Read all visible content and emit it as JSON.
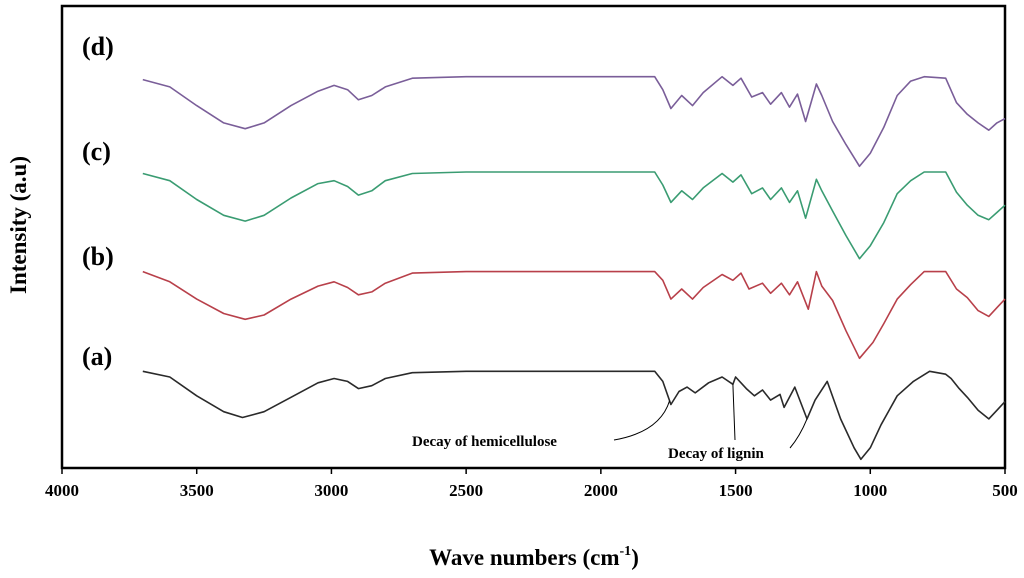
{
  "chart_data": {
    "type": "line",
    "title": "",
    "xlabel": "Wave numbers (cm",
    "xlabel_sup": "-1",
    "xlabel_end": ")",
    "ylabel": "Intensity (a.u)",
    "xlim": [
      4000,
      500
    ],
    "x_reversed": true,
    "x_ticks": [
      4000,
      3500,
      3000,
      2500,
      2000,
      1500,
      1000,
      500
    ],
    "x_tick_labels": [
      "4000",
      "3500",
      "3000",
      "2500",
      "2000",
      "1500",
      "1000",
      "500"
    ],
    "ylim": [
      0,
      11
    ],
    "y_ticks_shown": false,
    "grid": false,
    "legend": "inline labels at left",
    "series": [
      {
        "name": "(a)",
        "color": "#2a2a2a",
        "points": [
          [
            3700,
            3.35
          ],
          [
            3600,
            3.15
          ],
          [
            3500,
            2.5
          ],
          [
            3400,
            1.95
          ],
          [
            3330,
            1.75
          ],
          [
            3250,
            1.95
          ],
          [
            3150,
            2.45
          ],
          [
            3050,
            2.95
          ],
          [
            2990,
            3.1
          ],
          [
            2940,
            3.0
          ],
          [
            2900,
            2.75
          ],
          [
            2850,
            2.85
          ],
          [
            2800,
            3.1
          ],
          [
            2700,
            3.3
          ],
          [
            2500,
            3.35
          ],
          [
            2000,
            3.35
          ],
          [
            1800,
            3.35
          ],
          [
            1770,
            3.0
          ],
          [
            1740,
            2.2
          ],
          [
            1710,
            2.65
          ],
          [
            1680,
            2.8
          ],
          [
            1650,
            2.6
          ],
          [
            1600,
            2.95
          ],
          [
            1550,
            3.15
          ],
          [
            1510,
            2.9
          ],
          [
            1500,
            3.15
          ],
          [
            1460,
            2.75
          ],
          [
            1430,
            2.5
          ],
          [
            1400,
            2.7
          ],
          [
            1370,
            2.35
          ],
          [
            1335,
            2.55
          ],
          [
            1320,
            2.1
          ],
          [
            1280,
            2.8
          ],
          [
            1235,
            1.7
          ],
          [
            1205,
            2.35
          ],
          [
            1160,
            3.0
          ],
          [
            1110,
            1.7
          ],
          [
            1060,
            0.7
          ],
          [
            1035,
            0.3
          ],
          [
            1000,
            0.7
          ],
          [
            960,
            1.5
          ],
          [
            900,
            2.5
          ],
          [
            840,
            3.0
          ],
          [
            780,
            3.35
          ],
          [
            720,
            3.25
          ],
          [
            700,
            3.1
          ],
          [
            670,
            2.75
          ],
          [
            640,
            2.45
          ],
          [
            600,
            2.0
          ],
          [
            560,
            1.7
          ],
          [
            530,
            2.0
          ],
          [
            500,
            2.3
          ]
        ]
      },
      {
        "name": "(b)",
        "color": "#b8404a",
        "points": [
          [
            3700,
            6.8
          ],
          [
            3600,
            6.45
          ],
          [
            3500,
            5.85
          ],
          [
            3400,
            5.35
          ],
          [
            3320,
            5.15
          ],
          [
            3250,
            5.3
          ],
          [
            3150,
            5.85
          ],
          [
            3050,
            6.3
          ],
          [
            2990,
            6.45
          ],
          [
            2940,
            6.25
          ],
          [
            2900,
            6.0
          ],
          [
            2850,
            6.1
          ],
          [
            2800,
            6.4
          ],
          [
            2700,
            6.75
          ],
          [
            2500,
            6.8
          ],
          [
            2000,
            6.8
          ],
          [
            1800,
            6.8
          ],
          [
            1770,
            6.5
          ],
          [
            1740,
            5.85
          ],
          [
            1700,
            6.2
          ],
          [
            1660,
            5.85
          ],
          [
            1620,
            6.25
          ],
          [
            1550,
            6.7
          ],
          [
            1510,
            6.5
          ],
          [
            1480,
            6.75
          ],
          [
            1450,
            6.2
          ],
          [
            1400,
            6.4
          ],
          [
            1370,
            6.05
          ],
          [
            1330,
            6.4
          ],
          [
            1300,
            6.0
          ],
          [
            1270,
            6.45
          ],
          [
            1230,
            5.5
          ],
          [
            1200,
            6.8
          ],
          [
            1180,
            6.3
          ],
          [
            1140,
            5.8
          ],
          [
            1090,
            4.75
          ],
          [
            1040,
            3.8
          ],
          [
            990,
            4.35
          ],
          [
            950,
            5.0
          ],
          [
            900,
            5.85
          ],
          [
            850,
            6.35
          ],
          [
            800,
            6.8
          ],
          [
            720,
            6.8
          ],
          [
            680,
            6.2
          ],
          [
            640,
            5.9
          ],
          [
            600,
            5.45
          ],
          [
            560,
            5.25
          ],
          [
            530,
            5.55
          ],
          [
            500,
            5.85
          ]
        ]
      },
      {
        "name": "(c)",
        "color": "#3a9c72",
        "points": [
          [
            3700,
            10.2
          ],
          [
            3600,
            9.95
          ],
          [
            3500,
            9.3
          ],
          [
            3400,
            8.75
          ],
          [
            3320,
            8.55
          ],
          [
            3250,
            8.75
          ],
          [
            3150,
            9.35
          ],
          [
            3050,
            9.85
          ],
          [
            2990,
            9.95
          ],
          [
            2940,
            9.75
          ],
          [
            2900,
            9.45
          ],
          [
            2850,
            9.6
          ],
          [
            2800,
            9.95
          ],
          [
            2700,
            10.2
          ],
          [
            2500,
            10.25
          ],
          [
            2000,
            10.25
          ],
          [
            1800,
            10.25
          ],
          [
            1770,
            9.8
          ],
          [
            1740,
            9.2
          ],
          [
            1700,
            9.6
          ],
          [
            1660,
            9.3
          ],
          [
            1620,
            9.7
          ],
          [
            1550,
            10.2
          ],
          [
            1510,
            9.9
          ],
          [
            1480,
            10.15
          ],
          [
            1440,
            9.5
          ],
          [
            1400,
            9.7
          ],
          [
            1370,
            9.3
          ],
          [
            1330,
            9.7
          ],
          [
            1300,
            9.2
          ],
          [
            1270,
            9.6
          ],
          [
            1240,
            8.65
          ],
          [
            1200,
            10.0
          ],
          [
            1180,
            9.6
          ],
          [
            1140,
            8.9
          ],
          [
            1090,
            8.05
          ],
          [
            1040,
            7.25
          ],
          [
            1000,
            7.7
          ],
          [
            950,
            8.5
          ],
          [
            900,
            9.5
          ],
          [
            850,
            9.95
          ],
          [
            800,
            10.25
          ],
          [
            720,
            10.25
          ],
          [
            680,
            9.55
          ],
          [
            640,
            9.1
          ],
          [
            600,
            8.75
          ],
          [
            560,
            8.6
          ],
          [
            530,
            8.85
          ],
          [
            500,
            9.1
          ]
        ]
      },
      {
        "name": "(d)",
        "color": "#7a5e99",
        "points": [
          [
            3700,
            13.45
          ],
          [
            3600,
            13.2
          ],
          [
            3500,
            12.55
          ],
          [
            3400,
            11.95
          ],
          [
            3320,
            11.75
          ],
          [
            3250,
            11.95
          ],
          [
            3150,
            12.55
          ],
          [
            3050,
            13.05
          ],
          [
            2990,
            13.25
          ],
          [
            2940,
            13.1
          ],
          [
            2900,
            12.75
          ],
          [
            2850,
            12.9
          ],
          [
            2800,
            13.2
          ],
          [
            2700,
            13.5
          ],
          [
            2500,
            13.55
          ],
          [
            2000,
            13.55
          ],
          [
            1800,
            13.55
          ],
          [
            1770,
            13.1
          ],
          [
            1740,
            12.45
          ],
          [
            1700,
            12.9
          ],
          [
            1660,
            12.55
          ],
          [
            1620,
            13.0
          ],
          [
            1550,
            13.55
          ],
          [
            1510,
            13.25
          ],
          [
            1480,
            13.5
          ],
          [
            1440,
            12.85
          ],
          [
            1400,
            13.0
          ],
          [
            1370,
            12.6
          ],
          [
            1330,
            13.0
          ],
          [
            1300,
            12.5
          ],
          [
            1270,
            12.95
          ],
          [
            1240,
            12.0
          ],
          [
            1200,
            13.3
          ],
          [
            1180,
            12.9
          ],
          [
            1140,
            12.0
          ],
          [
            1090,
            11.2
          ],
          [
            1040,
            10.45
          ],
          [
            1000,
            10.9
          ],
          [
            950,
            11.8
          ],
          [
            900,
            12.9
          ],
          [
            850,
            13.4
          ],
          [
            800,
            13.55
          ],
          [
            720,
            13.5
          ],
          [
            680,
            12.65
          ],
          [
            640,
            12.25
          ],
          [
            600,
            11.95
          ],
          [
            560,
            11.7
          ],
          [
            530,
            11.95
          ],
          [
            500,
            12.1
          ]
        ]
      }
    ],
    "annotations": [
      {
        "text": "Decay of hemicellulose",
        "target_x": 1745,
        "target_series": "(a)"
      },
      {
        "text": "Decay of lignin",
        "targets_x": [
          1510,
          1235
        ],
        "target_series": "(a)"
      }
    ]
  }
}
